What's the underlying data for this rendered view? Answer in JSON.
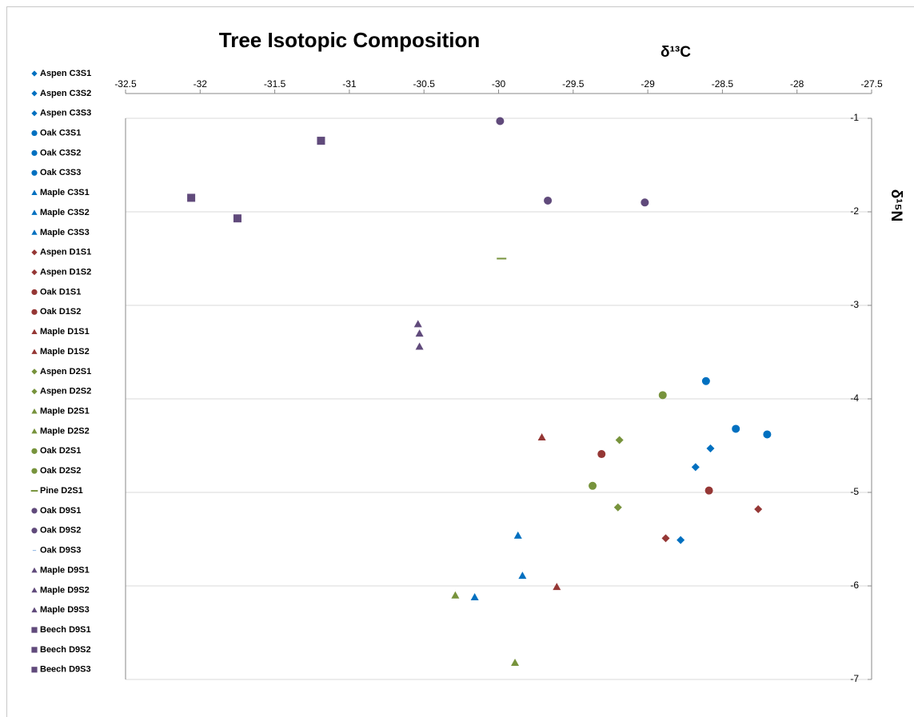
{
  "chart_data": {
    "type": "scatter",
    "title": "Tree Isotopic Composition",
    "x_label": "δ¹³C",
    "y_label": "δ¹⁵N",
    "xlim": [
      -32.5,
      -27.5
    ],
    "xticks": [
      -32.5,
      -32,
      -31.5,
      -31,
      -30.5,
      -30,
      -29.5,
      -29,
      -28.5,
      -28,
      -27.5
    ],
    "ylim": [
      -7,
      -1
    ],
    "yticks": [
      -1,
      -2,
      -3,
      -4,
      -5,
      -6,
      -7
    ],
    "grid": true,
    "legend": "left",
    "series": [
      {
        "name": "Aspen C3S1",
        "color": "#0070c0",
        "marker": "diamond",
        "x": [
          -28.58
        ],
        "y": [
          -4.53
        ]
      },
      {
        "name": "Aspen C3S2",
        "color": "#0070c0",
        "marker": "diamond",
        "x": [
          -28.68
        ],
        "y": [
          -4.73
        ]
      },
      {
        "name": "Aspen C3S3",
        "color": "#0070c0",
        "marker": "diamond",
        "x": [
          -28.78
        ],
        "y": [
          -5.51
        ]
      },
      {
        "name": "Oak C3S1",
        "color": "#0070c0",
        "marker": "circle",
        "x": [
          -28.61
        ],
        "y": [
          -3.81
        ]
      },
      {
        "name": "Oak C3S2",
        "color": "#0070c0",
        "marker": "circle",
        "x": [
          -28.41
        ],
        "y": [
          -4.32
        ]
      },
      {
        "name": "Oak C3S3",
        "color": "#0070c0",
        "marker": "circle",
        "x": [
          -28.2
        ],
        "y": [
          -4.38
        ]
      },
      {
        "name": "Maple C3S1",
        "color": "#0070c0",
        "marker": "triangle",
        "x": [
          -29.87
        ],
        "y": [
          -5.46
        ]
      },
      {
        "name": "Maple C3S2",
        "color": "#0070c0",
        "marker": "triangle",
        "x": [
          -29.84
        ],
        "y": [
          -5.89
        ]
      },
      {
        "name": "Maple C3S3",
        "color": "#0070c0",
        "marker": "triangle",
        "x": [
          -30.16
        ],
        "y": [
          -6.12
        ]
      },
      {
        "name": "Aspen D1S1",
        "color": "#953735",
        "marker": "diamond",
        "x": [
          -28.88
        ],
        "y": [
          -5.49
        ]
      },
      {
        "name": "Aspen D1S2",
        "color": "#953735",
        "marker": "diamond",
        "x": [
          -28.26
        ],
        "y": [
          -5.18
        ]
      },
      {
        "name": "Oak D1S1",
        "color": "#953735",
        "marker": "circle",
        "x": [
          -29.31
        ],
        "y": [
          -4.59
        ]
      },
      {
        "name": "Oak D1S2",
        "color": "#953735",
        "marker": "circle",
        "x": [
          -28.59
        ],
        "y": [
          -4.98
        ]
      },
      {
        "name": "Maple D1S1",
        "color": "#953735",
        "marker": "triangle",
        "x": [
          -29.71
        ],
        "y": [
          -4.41
        ]
      },
      {
        "name": "Maple D1S2",
        "color": "#953735",
        "marker": "triangle",
        "x": [
          -29.61
        ],
        "y": [
          -6.01
        ]
      },
      {
        "name": "Aspen D2S1",
        "color": "#77933c",
        "marker": "diamond",
        "x": [
          -29.19
        ],
        "y": [
          -4.44
        ]
      },
      {
        "name": "Aspen D2S2",
        "color": "#77933c",
        "marker": "diamond",
        "x": [
          -29.2
        ],
        "y": [
          -5.16
        ]
      },
      {
        "name": "Maple D2S1",
        "color": "#77933c",
        "marker": "triangle",
        "x": [
          -30.29
        ],
        "y": [
          -6.1
        ]
      },
      {
        "name": "Maple D2S2",
        "color": "#77933c",
        "marker": "triangle",
        "x": [
          -29.89
        ],
        "y": [
          -6.82
        ]
      },
      {
        "name": "Oak D2S1",
        "color": "#77933c",
        "marker": "circle",
        "x": [
          -28.9
        ],
        "y": [
          -3.96
        ]
      },
      {
        "name": "Oak D2S2",
        "color": "#77933c",
        "marker": "circle",
        "x": [
          -29.37
        ],
        "y": [
          -4.93
        ]
      },
      {
        "name": "Pine D2S1",
        "color": "#77933c",
        "marker": "dash",
        "x": [
          -29.98
        ],
        "y": [
          -2.5
        ]
      },
      {
        "name": "Oak D9S1",
        "color": "#604a7b",
        "marker": "circle",
        "x": [
          -29.99
        ],
        "y": [
          -1.03
        ]
      },
      {
        "name": "Oak D9S2",
        "color": "#604a7b",
        "marker": "circle",
        "x": [
          -29.67,
          -29.02
        ],
        "y": [
          -1.88,
          -1.9
        ]
      },
      {
        "name": "Oak D9S3",
        "color": "#8db3e2",
        "marker": "tiny",
        "x": [],
        "y": []
      },
      {
        "name": "Maple D9S1",
        "color": "#604a7b",
        "marker": "triangle",
        "x": [
          -30.54
        ],
        "y": [
          -3.2
        ]
      },
      {
        "name": "Maple D9S2",
        "color": "#604a7b",
        "marker": "triangle",
        "x": [
          -30.53
        ],
        "y": [
          -3.3
        ]
      },
      {
        "name": "Maple D9S3",
        "color": "#604a7b",
        "marker": "triangle",
        "x": [
          -30.53
        ],
        "y": [
          -3.44
        ]
      },
      {
        "name": "Beech D9S1",
        "color": "#604a7b",
        "marker": "square",
        "x": [
          -31.19
        ],
        "y": [
          -1.24
        ]
      },
      {
        "name": "Beech D9S2",
        "color": "#604a7b",
        "marker": "square",
        "x": [
          -32.06
        ],
        "y": [
          -1.85
        ]
      },
      {
        "name": "Beech D9S3",
        "color": "#604a7b",
        "marker": "square",
        "x": [
          -31.75
        ],
        "y": [
          -2.07
        ]
      }
    ]
  }
}
